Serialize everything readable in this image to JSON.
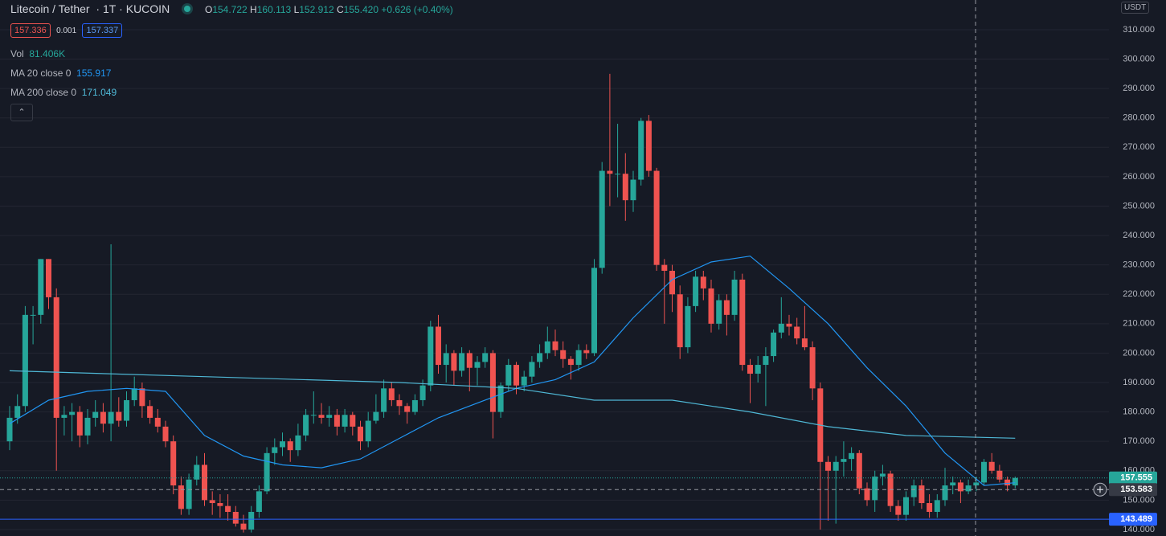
{
  "header": {
    "symbol": "Litecoin / Tether",
    "interval": "1T",
    "exchange": "KUCOIN",
    "ohlc": {
      "open_label": "O",
      "open": "154.722",
      "high_label": "H",
      "high": "160.113",
      "low_label": "L",
      "low": "152.912",
      "close_label": "C",
      "close": "155.420",
      "change": "+0.626",
      "change_pct": "(+0.40%)"
    },
    "sell": "157.336",
    "spread": "0.001",
    "buy": "157.337",
    "volume_label": "Vol",
    "volume": "81.406K",
    "currency": "USDT"
  },
  "chart_data": {
    "type": "candlestick",
    "up_color": "#26a69a",
    "down_color": "#ef5350",
    "ylim": [
      137.8,
      320.1
    ],
    "yticks": [
      {
        "value": 140,
        "label": "140.000"
      },
      {
        "value": 150,
        "label": "150.000"
      },
      {
        "value": 160,
        "label": "160.000"
      },
      {
        "value": 170,
        "label": "170.000"
      },
      {
        "value": 180,
        "label": "180.000"
      },
      {
        "value": 190,
        "label": "190.000"
      },
      {
        "value": 200,
        "label": "200.000"
      },
      {
        "value": 210,
        "label": "210.000"
      },
      {
        "value": 220,
        "label": "220.000"
      },
      {
        "value": 230,
        "label": "230.000"
      },
      {
        "value": 240,
        "label": "240.000"
      },
      {
        "value": 250,
        "label": "250.000"
      },
      {
        "value": 260,
        "label": "260.000"
      },
      {
        "value": 270,
        "label": "270.000"
      },
      {
        "value": 280,
        "label": "280.000"
      },
      {
        "value": 290,
        "label": "290.000"
      },
      {
        "value": 300,
        "label": "300.000"
      },
      {
        "value": 310,
        "label": "310.000"
      }
    ],
    "grid": true,
    "candles": [
      [
        170,
        182,
        167,
        178
      ],
      [
        178,
        186,
        176,
        182
      ],
      [
        182,
        216,
        180,
        213
      ],
      [
        213,
        216,
        203,
        213
      ],
      [
        213,
        232,
        210,
        232
      ],
      [
        232,
        232,
        215,
        219
      ],
      [
        219,
        222,
        160,
        178
      ],
      [
        178,
        182,
        172,
        179
      ],
      [
        179,
        183,
        170,
        180
      ],
      [
        180,
        182,
        168,
        172
      ],
      [
        172,
        181,
        169,
        178
      ],
      [
        178,
        184,
        175,
        180
      ],
      [
        180,
        183,
        173,
        176
      ],
      [
        176,
        237,
        170,
        180
      ],
      [
        180,
        185,
        175,
        177
      ],
      [
        177,
        187,
        175,
        184
      ],
      [
        184,
        192,
        182,
        188
      ],
      [
        188,
        190,
        178,
        182
      ],
      [
        182,
        184,
        176,
        178
      ],
      [
        178,
        181,
        173,
        175
      ],
      [
        175,
        177,
        168,
        170
      ],
      [
        170,
        172,
        152,
        155
      ],
      [
        155,
        158,
        145,
        147
      ],
      [
        147,
        159,
        145,
        157
      ],
      [
        157,
        165,
        155,
        162
      ],
      [
        162,
        166,
        148,
        150
      ],
      [
        150,
        153,
        145,
        149
      ],
      [
        149,
        152,
        144,
        148
      ],
      [
        148,
        152,
        143,
        146
      ],
      [
        146,
        148,
        141,
        142
      ],
      [
        142,
        145,
        139,
        140
      ],
      [
        140,
        148,
        139,
        146
      ],
      [
        146,
        155,
        144,
        153
      ],
      [
        153,
        168,
        152,
        166
      ],
      [
        166,
        171,
        162,
        168
      ],
      [
        168,
        173,
        165,
        170
      ],
      [
        170,
        171,
        163,
        167
      ],
      [
        167,
        176,
        165,
        172
      ],
      [
        172,
        181,
        170,
        179
      ],
      [
        179,
        187,
        176,
        179
      ],
      [
        179,
        183,
        176,
        178
      ],
      [
        178,
        182,
        175,
        179
      ],
      [
        179,
        181,
        172,
        175
      ],
      [
        175,
        181,
        173,
        179
      ],
      [
        179,
        180,
        172,
        175
      ],
      [
        175,
        177,
        167,
        170
      ],
      [
        170,
        180,
        168,
        177
      ],
      [
        177,
        186,
        176,
        180
      ],
      [
        180,
        191,
        178,
        188
      ],
      [
        188,
        190,
        182,
        184
      ],
      [
        184,
        186,
        179,
        182
      ],
      [
        182,
        183,
        176,
        180
      ],
      [
        180,
        186,
        179,
        184
      ],
      [
        184,
        191,
        182,
        189
      ],
      [
        189,
        211,
        187,
        209
      ],
      [
        209,
        213,
        193,
        196
      ],
      [
        196,
        203,
        190,
        200
      ],
      [
        200,
        201,
        189,
        194
      ],
      [
        194,
        202,
        192,
        200
      ],
      [
        200,
        201,
        187,
        195
      ],
      [
        195,
        199,
        189,
        197
      ],
      [
        197,
        202,
        195,
        200
      ],
      [
        200,
        201,
        171,
        180
      ],
      [
        180,
        190,
        178,
        189
      ],
      [
        189,
        198,
        187,
        196
      ],
      [
        196,
        197,
        186,
        189
      ],
      [
        189,
        194,
        187,
        192
      ],
      [
        192,
        199,
        190,
        197
      ],
      [
        197,
        203,
        195,
        200
      ],
      [
        200,
        209,
        198,
        204
      ],
      [
        204,
        208,
        199,
        201
      ],
      [
        201,
        204,
        195,
        198
      ],
      [
        198,
        199,
        191,
        196
      ],
      [
        196,
        203,
        194,
        201
      ],
      [
        201,
        203,
        198,
        200
      ],
      [
        200,
        232,
        199,
        229
      ],
      [
        229,
        265,
        227,
        262
      ],
      [
        262,
        295,
        250,
        261
      ],
      [
        261,
        278,
        253,
        261
      ],
      [
        261,
        268,
        245,
        252
      ],
      [
        252,
        262,
        248,
        259
      ],
      [
        259,
        280,
        257,
        279
      ],
      [
        279,
        281,
        260,
        262
      ],
      [
        262,
        263,
        228,
        230
      ],
      [
        230,
        232,
        210,
        228
      ],
      [
        228,
        230,
        214,
        220
      ],
      [
        220,
        223,
        198,
        202
      ],
      [
        202,
        219,
        200,
        216
      ],
      [
        216,
        228,
        214,
        226
      ],
      [
        226,
        228,
        218,
        222
      ],
      [
        222,
        225,
        207,
        210
      ],
      [
        210,
        220,
        208,
        218
      ],
      [
        218,
        220,
        206,
        213
      ],
      [
        213,
        228,
        211,
        225
      ],
      [
        225,
        227,
        194,
        196
      ],
      [
        196,
        198,
        183,
        193
      ],
      [
        193,
        199,
        190,
        196
      ],
      [
        196,
        202,
        182,
        199
      ],
      [
        199,
        208,
        197,
        207
      ],
      [
        207,
        219,
        205,
        210
      ],
      [
        210,
        213,
        206,
        209
      ],
      [
        209,
        212,
        203,
        205
      ],
      [
        205,
        216,
        201,
        202
      ],
      [
        202,
        204,
        184,
        188
      ],
      [
        188,
        190,
        140,
        163
      ],
      [
        163,
        165,
        143,
        160
      ],
      [
        160,
        165,
        142,
        163
      ],
      [
        163,
        170,
        158,
        164
      ],
      [
        164,
        168,
        160,
        166
      ],
      [
        166,
        167,
        152,
        154
      ],
      [
        154,
        156,
        148,
        150
      ],
      [
        150,
        160,
        146,
        158
      ],
      [
        158,
        162,
        155,
        159
      ],
      [
        159,
        160,
        146,
        148
      ],
      [
        148,
        150,
        143,
        145
      ],
      [
        145,
        153,
        143,
        151
      ],
      [
        151,
        157,
        148,
        155
      ],
      [
        155,
        157,
        147,
        149
      ],
      [
        149,
        152,
        144,
        146
      ],
      [
        146,
        152,
        144,
        150
      ],
      [
        150,
        161,
        148,
        155
      ],
      [
        155,
        158,
        152,
        156
      ],
      [
        156,
        157,
        149,
        153
      ],
      [
        153,
        157,
        152,
        155
      ],
      [
        155,
        158,
        153,
        156
      ],
      [
        156,
        164,
        155,
        163
      ],
      [
        163,
        166,
        159,
        160
      ],
      [
        160,
        162,
        156,
        157
      ],
      [
        157,
        158,
        153,
        155
      ],
      [
        155,
        158,
        154,
        157.555
      ]
    ],
    "series": [
      {
        "name": "MA 20 close 0",
        "legend_value": "155.917",
        "color": "#2196f3",
        "x": [
          0,
          5,
          10,
          15,
          20,
          25,
          30,
          35,
          40,
          45,
          50,
          55,
          60,
          65,
          70,
          75,
          80,
          85,
          90,
          95,
          100,
          105,
          110,
          115,
          120,
          125,
          129
        ],
        "values": [
          176,
          184,
          187,
          188,
          187,
          172,
          165,
          162,
          161,
          164,
          171,
          178,
          183,
          188,
          191,
          197,
          212,
          225,
          231,
          233,
          222,
          210,
          195,
          182,
          166,
          155,
          155.917
        ]
      },
      {
        "name": "MA 200 close 0",
        "legend_value": "171.049",
        "color": "#4fb8d6",
        "x": [
          0,
          25,
          50,
          65,
          75,
          85,
          95,
          105,
          115,
          129
        ],
        "values": [
          194,
          192,
          190,
          188,
          184,
          184,
          180,
          175,
          172,
          171.049
        ]
      }
    ],
    "last_price": 157.555,
    "crosshair_price": 153.583,
    "horizontal_line": 143.489,
    "horizontal_line_color": "#2962ff"
  }
}
